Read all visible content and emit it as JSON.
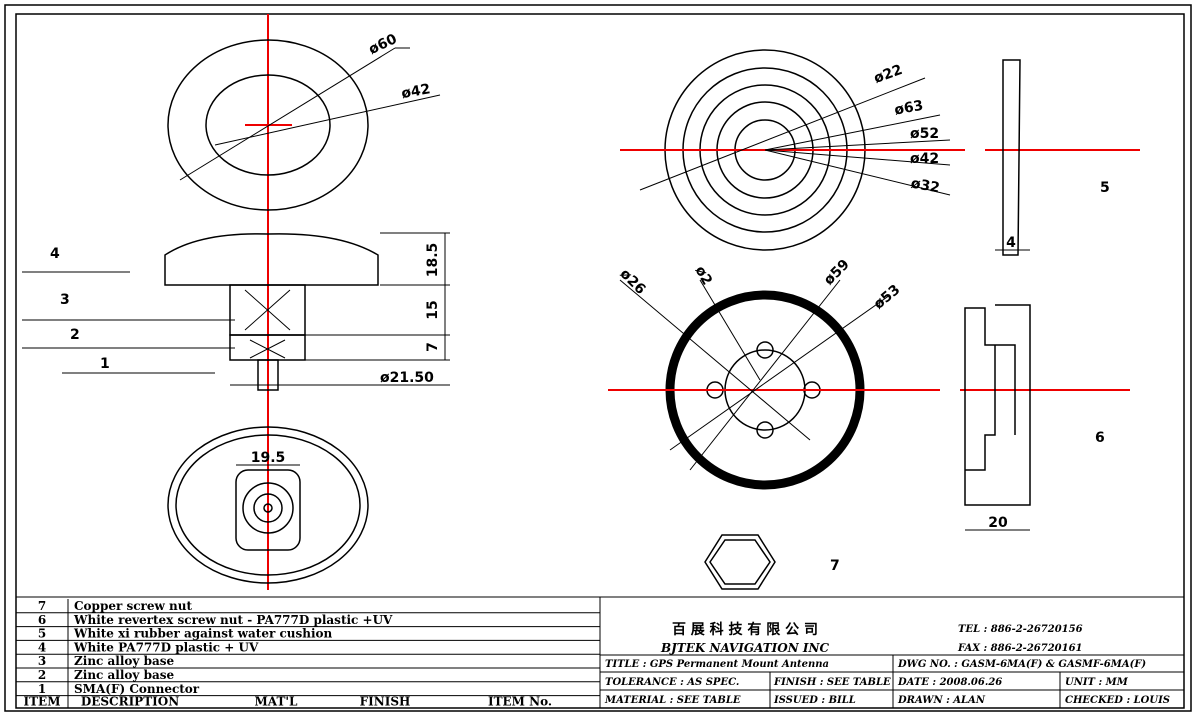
{
  "dimensions": {
    "top_outer": "ø60",
    "top_inner": "ø42",
    "knob_height": "18.5",
    "body_height": "15",
    "base_height": "7",
    "body_dia": "ø21.50",
    "bottom_width": "19.5",
    "rings": [
      "ø22",
      "ø63",
      "ø52",
      "ø42",
      "ø32"
    ],
    "cushion_thickness": "4",
    "base_dims": [
      "ø26",
      "ø2",
      "ø59",
      "ø53"
    ],
    "profile_width": "20"
  },
  "callouts": [
    "1",
    "2",
    "3",
    "4",
    "5",
    "6",
    "7"
  ],
  "parts_list": {
    "header": [
      "ITEM",
      "DESCRIPTION",
      "MAT'L",
      "FINISH",
      "ITEM No."
    ],
    "rows": [
      [
        "7",
        "Copper screw nut"
      ],
      [
        "6",
        "White revertex screw nut - PA777D plastic +UV"
      ],
      [
        "5",
        "White xi rubber against water cushion"
      ],
      [
        "4",
        "White PA777D plastic + UV"
      ],
      [
        "3",
        "Zinc alloy base"
      ],
      [
        "2",
        "Zinc alloy base"
      ],
      [
        "1",
        "SMA(F) Connector"
      ]
    ]
  },
  "title_block": {
    "company_cn": "百 展 科 技 有 限 公 司",
    "company_en": "BJTEK NAVIGATION INC",
    "tel": "TEL : 886-2-26720156",
    "fax": "FAX : 886-2-26720161",
    "title": "TITLE : GPS Permanent Mount Antenna",
    "dwg_no": "DWG NO. : GASM-6MA(F) & GASMF-6MA(F)",
    "tolerance": "TOLERANCE : AS SPEC.",
    "finish": "FINISH : SEE TABLE",
    "date": "DATE : 2008.06.26",
    "unit": "UNIT : MM",
    "material": "MATERIAL : SEE TABLE",
    "issued": "ISSUED : BILL",
    "drawn": "DRAWN : ALAN",
    "checked": "CHECKED : LOUIS"
  }
}
